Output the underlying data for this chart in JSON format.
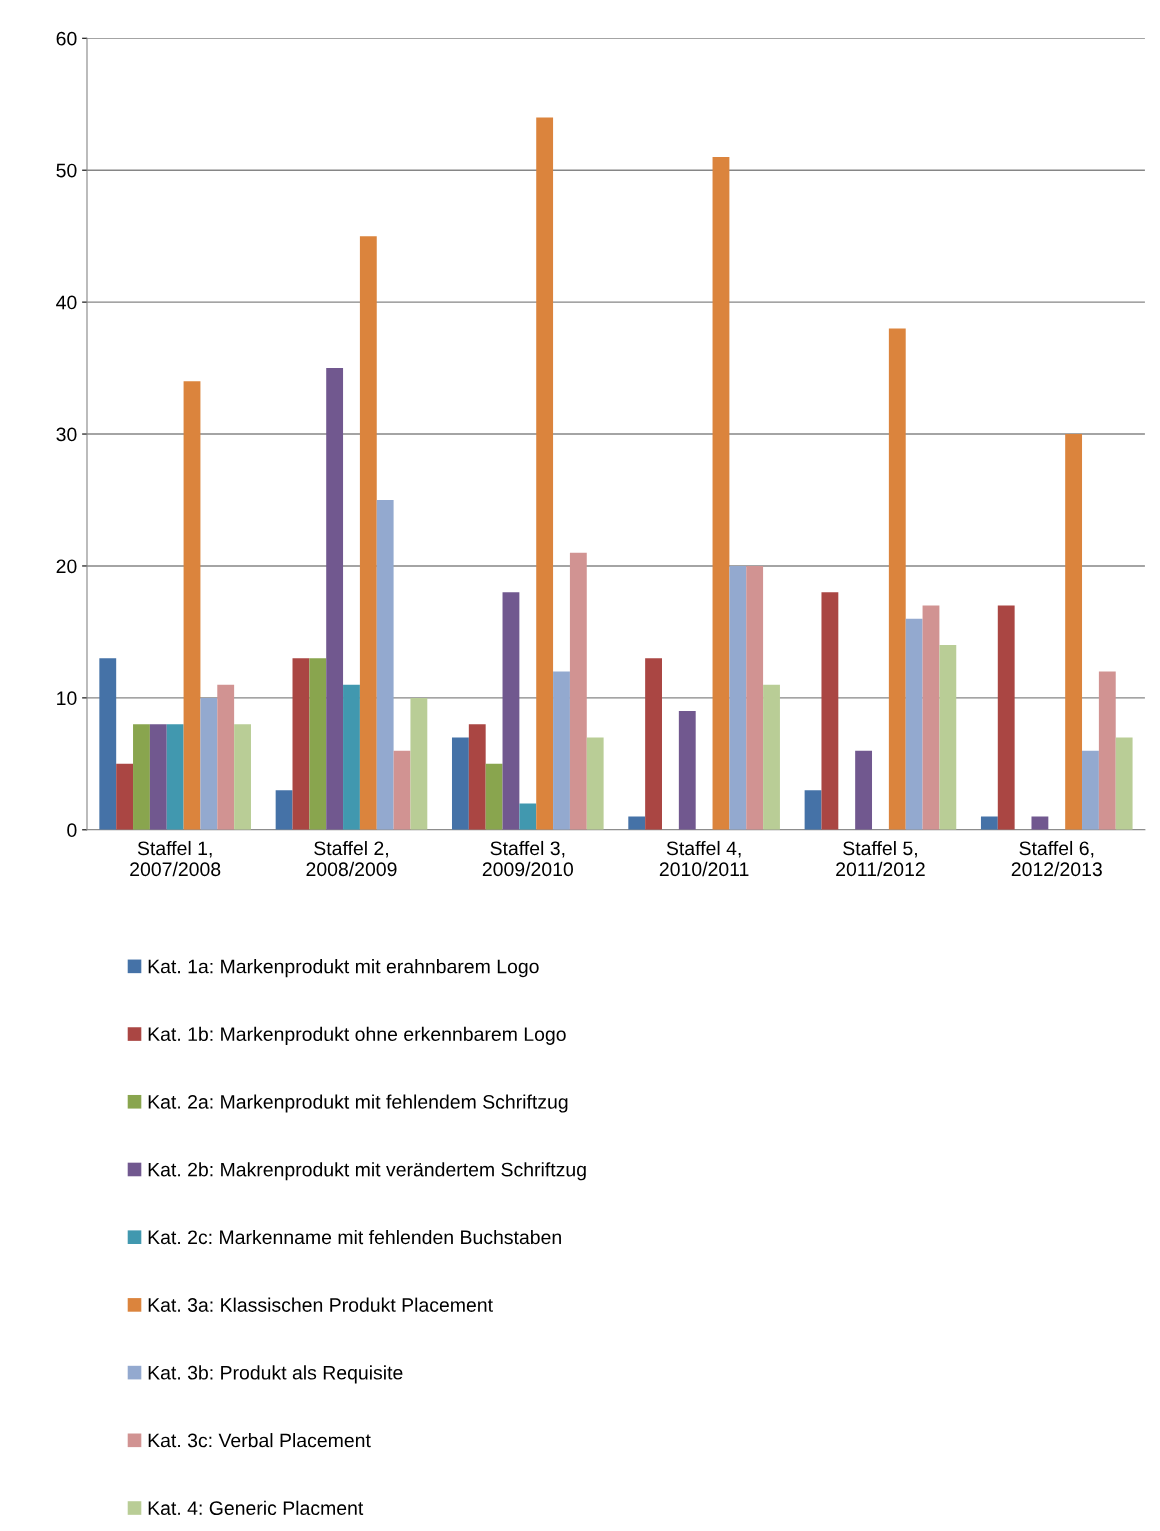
{
  "chart_data": {
    "type": "bar",
    "categories": [
      "Staffel 1,\n2007/2008",
      "Staffel 2,\n2008/2009",
      "Staffel 3,\n2009/2010",
      "Staffel 4,\n2010/2011",
      "Staffel 5,\n2011/2012",
      "Staffel 6,\n2012/2013"
    ],
    "series": [
      {
        "name": "Kat. 1a: Markenprodukt mit erahnbarem Logo",
        "color": "#4572a7",
        "values": [
          13,
          3,
          7,
          1,
          3,
          1
        ]
      },
      {
        "name": "Kat. 1b: Markenprodukt ohne erkennbarem Logo",
        "color": "#aa4643",
        "values": [
          5,
          13,
          8,
          13,
          18,
          17
        ]
      },
      {
        "name": "Kat. 2a: Markenprodukt mit fehlendem Schriftzug",
        "color": "#89a54e",
        "values": [
          8,
          13,
          5,
          0,
          0,
          0
        ]
      },
      {
        "name": "Kat. 2b: Makrenprodukt mit verändertem Schriftzug",
        "color": "#71588f",
        "values": [
          8,
          35,
          18,
          9,
          6,
          1
        ]
      },
      {
        "name": "Kat. 2c: Markenname mit fehlenden Buchstaben",
        "color": "#4198af",
        "values": [
          8,
          11,
          2,
          0,
          0,
          0
        ]
      },
      {
        "name": "Kat. 3a: Klassischen Produkt Placement",
        "color": "#db843d",
        "values": [
          34,
          45,
          54,
          51,
          38,
          30
        ]
      },
      {
        "name": "Kat. 3b: Produkt als Requisite",
        "color": "#93a9cf",
        "values": [
          10,
          25,
          12,
          20,
          16,
          6
        ]
      },
      {
        "name": "Kat. 3c: Verbal Placement",
        "color": "#d19392",
        "values": [
          11,
          6,
          21,
          20,
          17,
          12
        ]
      },
      {
        "name": "Kat. 4: Generic Placment",
        "color": "#b9cd96",
        "values": [
          8,
          10,
          7,
          11,
          14,
          7
        ]
      }
    ],
    "ylim": [
      0,
      60
    ],
    "yticks": [
      0,
      10,
      20,
      30,
      40,
      50,
      60
    ],
    "grid": "y",
    "legend": "bottom"
  }
}
